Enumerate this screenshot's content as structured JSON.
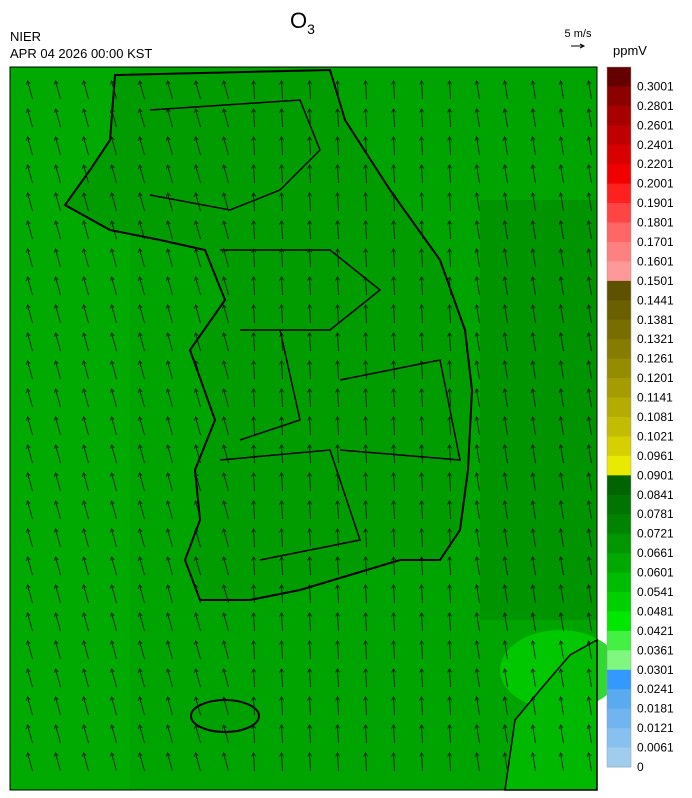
{
  "header": {
    "title": "O",
    "title_sub": "3",
    "agency": "NIER",
    "timestamp": "APR 04 2026 00:00 KST"
  },
  "wind_scale": {
    "label": "5 m/s"
  },
  "legend": {
    "unit": "ppmV",
    "bins": [
      {
        "label": "0.3001",
        "color": "#660000"
      },
      {
        "label": "0.2801",
        "color": "#8c0000"
      },
      {
        "label": "0.2601",
        "color": "#a60000"
      },
      {
        "label": "0.2401",
        "color": "#bf0000"
      },
      {
        "label": "0.2201",
        "color": "#d90000"
      },
      {
        "label": "0.2001",
        "color": "#f20000"
      },
      {
        "label": "0.1901",
        "color": "#ff2020"
      },
      {
        "label": "0.1801",
        "color": "#ff4444"
      },
      {
        "label": "0.1701",
        "color": "#ff6666"
      },
      {
        "label": "0.1601",
        "color": "#ff8080"
      },
      {
        "label": "0.1501",
        "color": "#ff9999"
      },
      {
        "label": "0.1441",
        "color": "#5e5200"
      },
      {
        "label": "0.1381",
        "color": "#6b6000"
      },
      {
        "label": "0.1321",
        "color": "#786e00"
      },
      {
        "label": "0.1261",
        "color": "#867c00"
      },
      {
        "label": "0.1201",
        "color": "#958c00"
      },
      {
        "label": "0.1141",
        "color": "#a49c00"
      },
      {
        "label": "0.1081",
        "color": "#b4ac00"
      },
      {
        "label": "0.1021",
        "color": "#c4bc00"
      },
      {
        "label": "0.0961",
        "color": "#d6d000"
      },
      {
        "label": "0.0901",
        "color": "#eaea00"
      },
      {
        "label": "0.0841",
        "color": "#006400"
      },
      {
        "label": "0.0781",
        "color": "#007400"
      },
      {
        "label": "0.0721",
        "color": "#008400"
      },
      {
        "label": "0.0661",
        "color": "#009600"
      },
      {
        "label": "0.0601",
        "color": "#00a800"
      },
      {
        "label": "0.0541",
        "color": "#00bc00"
      },
      {
        "label": "0.0481",
        "color": "#00d000"
      },
      {
        "label": "0.0421",
        "color": "#00e800"
      },
      {
        "label": "0.0361",
        "color": "#44f044"
      },
      {
        "label": "0.0301",
        "color": "#80f880"
      },
      {
        "label": "0.0241",
        "color": "#3399ff"
      },
      {
        "label": "0.0181",
        "color": "#5aaaf0"
      },
      {
        "label": "0.0121",
        "color": "#70b4f0"
      },
      {
        "label": "0.0061",
        "color": "#88c0f0"
      },
      {
        "label": "0",
        "color": "#a0cdee"
      }
    ]
  }
}
